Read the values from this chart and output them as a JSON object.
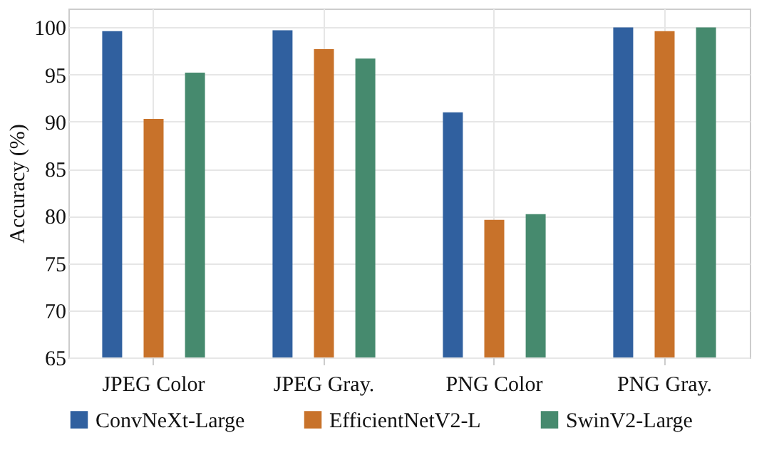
{
  "chart_data": {
    "type": "bar",
    "ylabel": "Accuracy (%)",
    "categories": [
      "JPEG Color",
      "JPEG Gray.",
      "PNG Color",
      "PNG Gray."
    ],
    "series": [
      {
        "name": "ConvNeXt-Large",
        "color": "#30609f",
        "values": [
          99.6,
          99.7,
          91.0,
          100.0
        ]
      },
      {
        "name": "EfficientNetV2-L",
        "color": "#c8722a",
        "values": [
          90.3,
          97.7,
          79.6,
          99.6
        ]
      },
      {
        "name": "SwinV2-Large",
        "color": "#468a6e",
        "values": [
          95.2,
          96.7,
          80.2,
          100.0
        ]
      }
    ],
    "ylim": [
      65,
      102
    ],
    "yticks": [
      65,
      70,
      75,
      80,
      85,
      90,
      95,
      100
    ],
    "grid": true,
    "legend": "bottom"
  }
}
